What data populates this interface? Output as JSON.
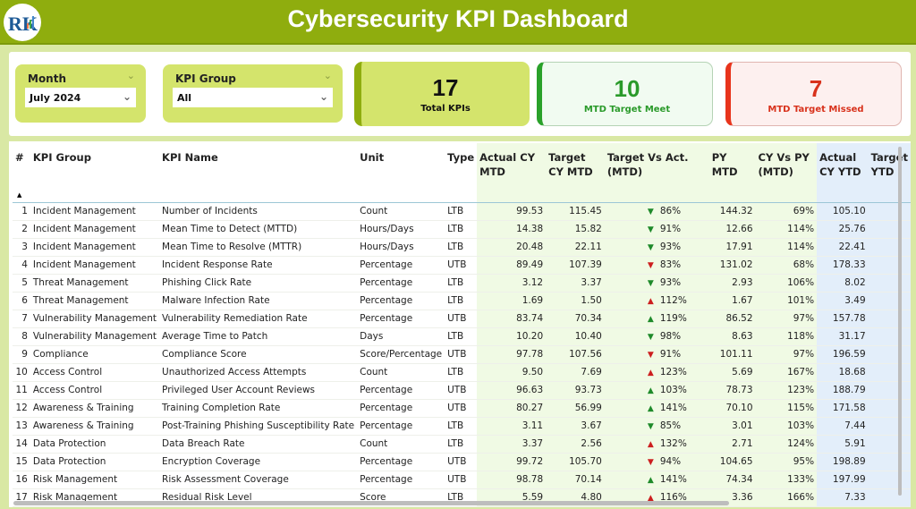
{
  "header": {
    "title": "Cybersecurity KPI Dashboard",
    "logo_icon": "rk-chart-logo"
  },
  "filters": {
    "month": {
      "label": "Month",
      "value": "July 2024"
    },
    "kpi_group": {
      "label": "KPI Group",
      "value": "All"
    }
  },
  "cards": [
    {
      "value": "17",
      "label": "Total KPIs",
      "color": "#8fad0e"
    },
    {
      "value": "10",
      "label": "MTD Target Meet",
      "color": "#2aa12a"
    },
    {
      "value": "7",
      "label": "MTD Target Missed",
      "color": "#e8341c"
    }
  ],
  "colors": {
    "up_good": "#1e8a2a",
    "down_bad": "#cc1f1f",
    "header": "#8fad0e"
  },
  "table": {
    "columns": [
      "#",
      "KPI Group",
      "KPI Name",
      "Unit",
      "Type",
      "Actual CY MTD",
      "Target CY MTD",
      "Target Vs Act. (MTD)",
      "PY MTD",
      "CY Vs PY (MTD)",
      "Actual CY YTD",
      "Target YTD"
    ],
    "rows": [
      [
        "1",
        "Incident Management",
        "Number of Incidents",
        "Count",
        "LTB",
        "99.53",
        "115.45",
        "down-green",
        "86%",
        "144.32",
        "69%",
        "105.10"
      ],
      [
        "2",
        "Incident Management",
        "Mean Time to Detect (MTTD)",
        "Hours/Days",
        "LTB",
        "14.38",
        "15.82",
        "down-green",
        "91%",
        "12.66",
        "114%",
        "25.76"
      ],
      [
        "3",
        "Incident Management",
        "Mean Time to Resolve (MTTR)",
        "Hours/Days",
        "LTB",
        "20.48",
        "22.11",
        "down-green",
        "93%",
        "17.91",
        "114%",
        "22.41"
      ],
      [
        "4",
        "Incident Management",
        "Incident Response Rate",
        "Percentage",
        "UTB",
        "89.49",
        "107.39",
        "down-red",
        "83%",
        "131.02",
        "68%",
        "178.33"
      ],
      [
        "5",
        "Threat Management",
        "Phishing Click Rate",
        "Percentage",
        "LTB",
        "3.12",
        "3.37",
        "down-green",
        "93%",
        "2.93",
        "106%",
        "8.02"
      ],
      [
        "6",
        "Threat Management",
        "Malware Infection Rate",
        "Percentage",
        "LTB",
        "1.69",
        "1.50",
        "up-red",
        "112%",
        "1.67",
        "101%",
        "3.49"
      ],
      [
        "7",
        "Vulnerability Management",
        "Vulnerability Remediation Rate",
        "Percentage",
        "UTB",
        "83.74",
        "70.34",
        "up-green",
        "119%",
        "86.52",
        "97%",
        "157.78"
      ],
      [
        "8",
        "Vulnerability Management",
        "Average Time to Patch",
        "Days",
        "LTB",
        "10.20",
        "10.40",
        "down-green",
        "98%",
        "8.63",
        "118%",
        "31.17"
      ],
      [
        "9",
        "Compliance",
        "Compliance Score",
        "Score/Percentage",
        "UTB",
        "97.78",
        "107.56",
        "down-red",
        "91%",
        "101.11",
        "97%",
        "196.59"
      ],
      [
        "10",
        "Access Control",
        "Unauthorized Access Attempts",
        "Count",
        "LTB",
        "9.50",
        "7.69",
        "up-red",
        "123%",
        "5.69",
        "167%",
        "18.68"
      ],
      [
        "11",
        "Access Control",
        "Privileged User Account Reviews",
        "Percentage",
        "UTB",
        "96.63",
        "93.73",
        "up-green",
        "103%",
        "78.73",
        "123%",
        "188.79"
      ],
      [
        "12",
        "Awareness & Training",
        "Training Completion Rate",
        "Percentage",
        "UTB",
        "80.27",
        "56.99",
        "up-green",
        "141%",
        "70.10",
        "115%",
        "171.58"
      ],
      [
        "13",
        "Awareness & Training",
        "Post-Training Phishing Susceptibility Rate",
        "Percentage",
        "LTB",
        "3.11",
        "3.67",
        "down-green",
        "85%",
        "3.01",
        "103%",
        "7.44"
      ],
      [
        "14",
        "Data Protection",
        "Data Breach Rate",
        "Count",
        "LTB",
        "3.37",
        "2.56",
        "up-red",
        "132%",
        "2.71",
        "124%",
        "5.91"
      ],
      [
        "15",
        "Data Protection",
        "Encryption Coverage",
        "Percentage",
        "UTB",
        "99.72",
        "105.70",
        "down-red",
        "94%",
        "104.65",
        "95%",
        "198.89"
      ],
      [
        "16",
        "Risk Management",
        "Risk Assessment Coverage",
        "Percentage",
        "UTB",
        "98.78",
        "70.14",
        "up-green",
        "141%",
        "74.34",
        "133%",
        "197.99"
      ],
      [
        "17",
        "Risk Management",
        "Residual Risk Level",
        "Score",
        "LTB",
        "5.59",
        "4.80",
        "up-red",
        "116%",
        "3.36",
        "166%",
        "7.33"
      ]
    ]
  }
}
